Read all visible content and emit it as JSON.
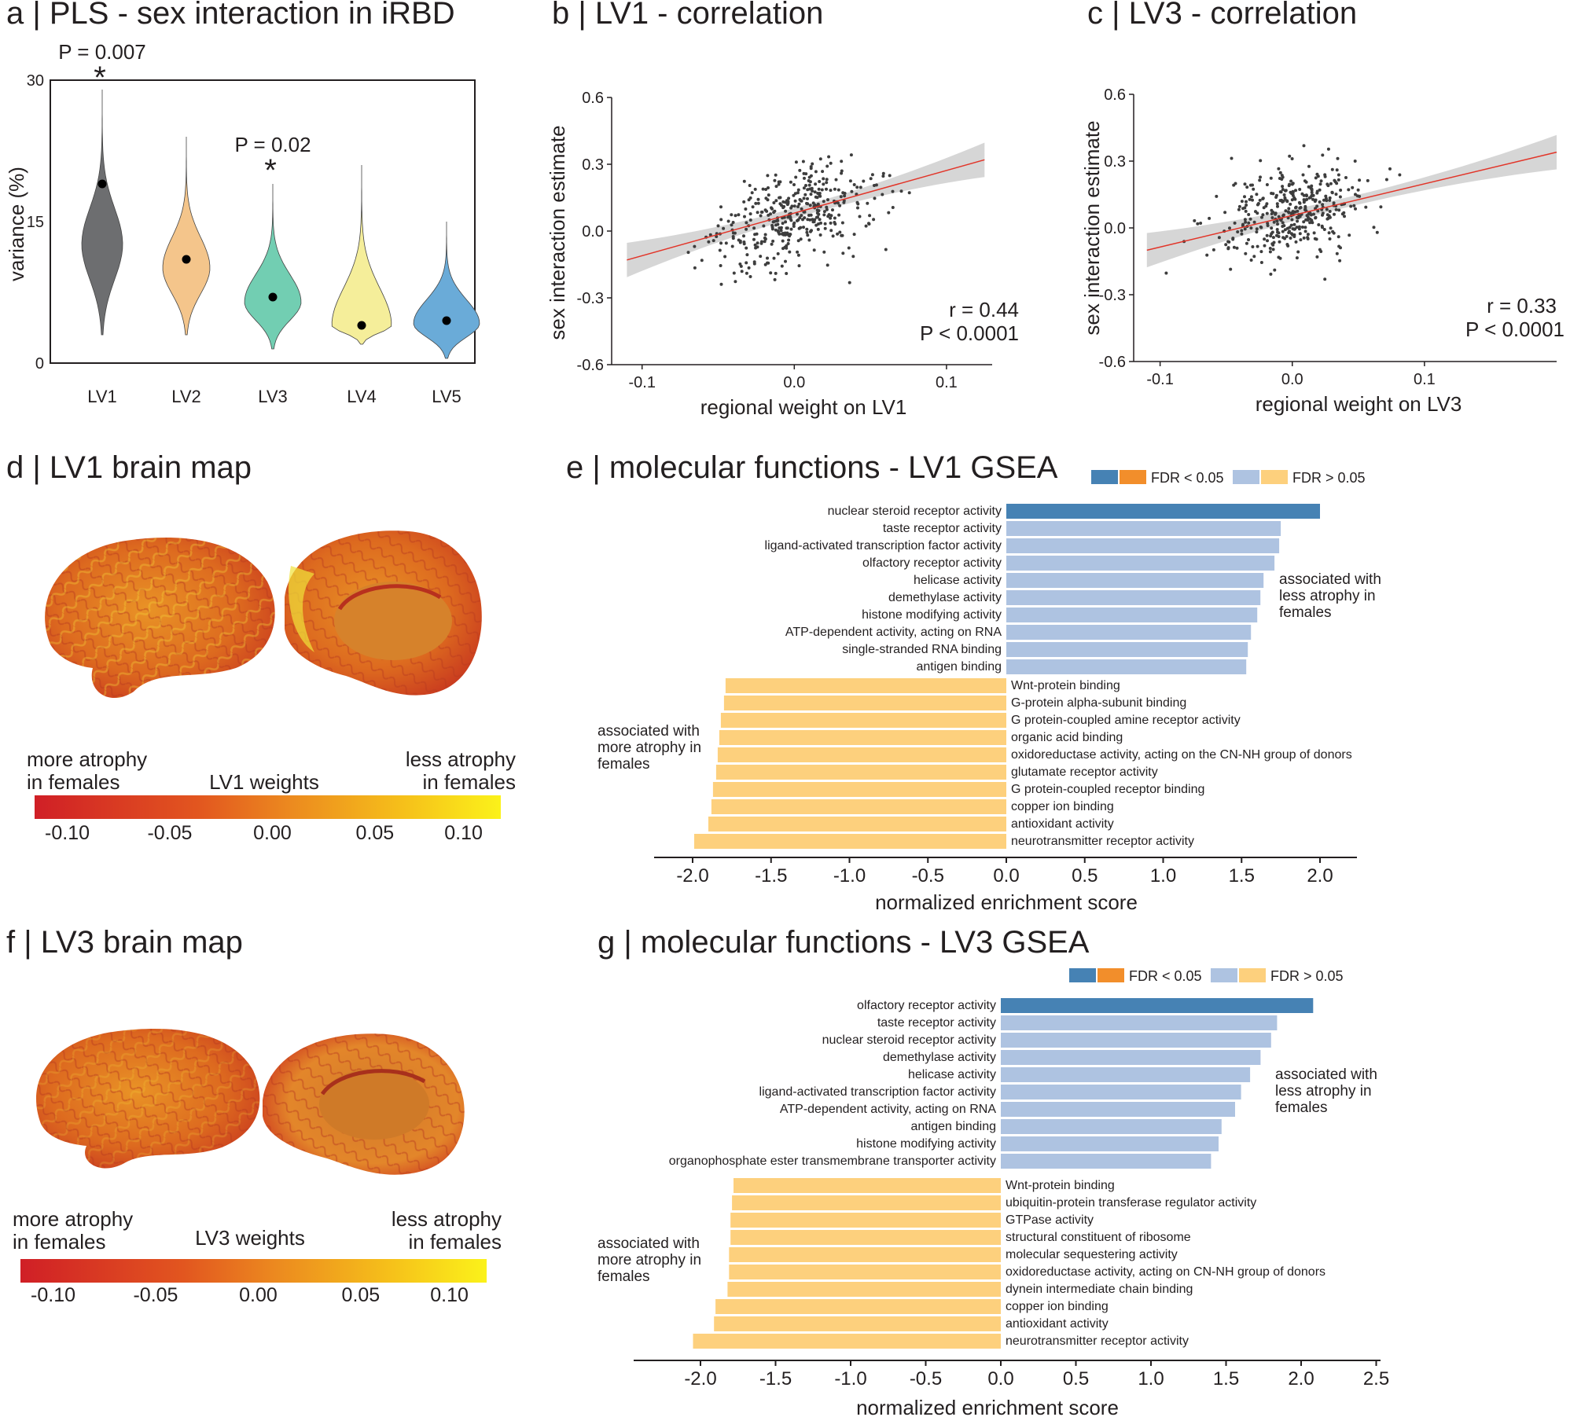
{
  "colors": {
    "lv1": "#6d6e70",
    "lv2": "#f4c58b",
    "lv3": "#72ceb2",
    "lv4": "#f5ee9a",
    "lv5": "#6aabd8",
    "sig_pos": "#4682b4",
    "sig_neg": "#f28e2b",
    "ns_pos": "#aec3e1",
    "ns_neg": "#fdd07d",
    "fit_line": "#e23428",
    "band": "#cfcfcf",
    "points": "#3d3d3d"
  },
  "panel_a": {
    "title": "a | PLS - sex interaction in iRBD",
    "chart_data": {
      "type": "violin",
      "ylabel": "variance (%)",
      "ylim": [
        0,
        30
      ],
      "yticks": [
        "0",
        "15",
        "30"
      ],
      "categories": [
        "LV1",
        "LV2",
        "LV3",
        "LV4",
        "LV5"
      ],
      "observed": [
        19,
        11,
        7,
        4,
        4.5
      ],
      "dist_min": [
        3,
        3,
        1.5,
        2,
        0.5
      ],
      "dist_max": [
        29,
        24,
        19,
        21,
        15
      ],
      "annotations": [
        {
          "category": "LV1",
          "p": "P = 0.007",
          "star": "*"
        },
        {
          "category": "LV3",
          "p": "P = 0.02",
          "star": "*"
        }
      ]
    }
  },
  "panel_b": {
    "title": "b | LV1 - correlation",
    "chart_data": {
      "type": "scatter",
      "xlabel": "regional weight on LV1",
      "ylabel": "sex interaction estimate",
      "xlim": [
        -0.12,
        0.13
      ],
      "ylim": [
        -0.6,
        0.6
      ],
      "xticks": [
        -0.1,
        0.0,
        0.1
      ],
      "yticks": [
        -0.6,
        -0.3,
        0.0,
        0.3,
        0.6
      ],
      "xtick_labels": [
        "-0.1",
        "0.0",
        "0.1"
      ],
      "ytick_labels": [
        "-0.6",
        "-0.3",
        "0.0",
        "0.3",
        "0.6"
      ],
      "fit": {
        "x": [
          -0.11,
          0.125
        ],
        "y": [
          -0.13,
          0.32
        ]
      },
      "r_text": "r = 0.44",
      "p_text": "P < 0.0001",
      "n_points": 400,
      "seed": 7,
      "slope": 1.9,
      "spread": 0.17
    }
  },
  "panel_c": {
    "title": "c | LV3 - correlation",
    "chart_data": {
      "type": "scatter",
      "xlabel": "regional weight on LV3",
      "ylabel": "sex interaction estimate",
      "xlim": [
        -0.12,
        0.2
      ],
      "ylim": [
        -0.6,
        0.6
      ],
      "xticks": [
        -0.1,
        0.0,
        0.1
      ],
      "yticks": [
        -0.6,
        -0.3,
        0.0,
        0.3,
        0.6
      ],
      "xtick_labels": [
        "-0.1",
        "0.0",
        "0.1"
      ],
      "ytick_labels": [
        "-0.6",
        "-0.3",
        "0.0",
        "0.3",
        "0.6"
      ],
      "fit": {
        "x": [
          -0.11,
          0.2
        ],
        "y": [
          -0.1,
          0.34
        ]
      },
      "r_text": "r = 0.33",
      "p_text": "P < 0.0001",
      "n_points": 400,
      "seed": 13,
      "slope": 1.4,
      "spread": 0.18
    }
  },
  "panel_d": {
    "title": "d | LV1 brain map",
    "left_label": [
      "more atrophy",
      "in females"
    ],
    "right_label": [
      "less atrophy",
      "in females"
    ],
    "colorbar_title": "LV1 weights",
    "colorbar_ticks": [
      "-0.10",
      "-0.05",
      "0.00",
      "0.05",
      "0.10"
    ]
  },
  "panel_f": {
    "title": "f | LV3 brain map",
    "left_label": [
      "more atrophy",
      "in females"
    ],
    "right_label": [
      "less atrophy",
      "in females"
    ],
    "colorbar_title": "LV3 weights",
    "colorbar_ticks": [
      "-0.10",
      "-0.05",
      "0.00",
      "0.05",
      "0.10"
    ]
  },
  "panel_e": {
    "title": "e | molecular functions - LV1 GSEA",
    "legend": {
      "sig": "FDR < 0.05",
      "ns": "FDR > 0.05"
    },
    "pos_annotation": [
      "associated with",
      "less atrophy in",
      "females"
    ],
    "neg_annotation": [
      "associated with",
      "more atrophy in",
      "females"
    ],
    "chart_data": {
      "type": "bar",
      "orientation": "horizontal",
      "xlabel": "normalized enrichment score",
      "xlim": [
        -2.2,
        2.2
      ],
      "xticks": [
        -2.0,
        -1.5,
        -1.0,
        -0.5,
        0.0,
        0.5,
        1.0,
        1.5,
        2.0
      ],
      "xtick_labels": [
        "-2.0",
        "-1.5",
        "-1.0",
        "-0.5",
        "0.0",
        "0.5",
        "1.0",
        "1.5",
        "2.0"
      ],
      "positive": [
        {
          "term": "nuclear steroid receptor activity",
          "nes": 2.0,
          "fdr_sig": true
        },
        {
          "term": "taste receptor activity",
          "nes": 1.75,
          "fdr_sig": false
        },
        {
          "term": "ligand-activated transcription factor activity",
          "nes": 1.74,
          "fdr_sig": false
        },
        {
          "term": "olfactory receptor activity",
          "nes": 1.71,
          "fdr_sig": false
        },
        {
          "term": "helicase activity",
          "nes": 1.64,
          "fdr_sig": false
        },
        {
          "term": "demethylase activity",
          "nes": 1.62,
          "fdr_sig": false
        },
        {
          "term": "histone modifying activity",
          "nes": 1.6,
          "fdr_sig": false
        },
        {
          "term": "ATP-dependent activity, acting on RNA",
          "nes": 1.56,
          "fdr_sig": false
        },
        {
          "term": "single-stranded RNA binding",
          "nes": 1.54,
          "fdr_sig": false
        },
        {
          "term": "antigen binding",
          "nes": 1.53,
          "fdr_sig": false
        }
      ],
      "negative": [
        {
          "term": "Wnt-protein binding",
          "nes": -1.79,
          "fdr_sig": false
        },
        {
          "term": "G-protein alpha-subunit binding",
          "nes": -1.8,
          "fdr_sig": false
        },
        {
          "term": "G protein-coupled amine receptor activity",
          "nes": -1.82,
          "fdr_sig": false
        },
        {
          "term": "organic acid binding",
          "nes": -1.83,
          "fdr_sig": false
        },
        {
          "term": "oxidoreductase activity, acting on the CN-NH group of donors",
          "nes": -1.84,
          "fdr_sig": false
        },
        {
          "term": "glutamate receptor activity",
          "nes": -1.85,
          "fdr_sig": false
        },
        {
          "term": "G protein-coupled receptor binding",
          "nes": -1.87,
          "fdr_sig": false
        },
        {
          "term": "copper ion binding",
          "nes": -1.88,
          "fdr_sig": false
        },
        {
          "term": "antioxidant activity",
          "nes": -1.9,
          "fdr_sig": false
        },
        {
          "term": "neurotransmitter receptor activity",
          "nes": -1.99,
          "fdr_sig": false
        }
      ]
    }
  },
  "panel_g": {
    "title": "g | molecular functions - LV3 GSEA",
    "legend": {
      "sig": "FDR < 0.05",
      "ns": "FDR > 0.05"
    },
    "pos_annotation": [
      "associated with",
      "less atrophy in",
      "females"
    ],
    "neg_annotation": [
      "associated with",
      "more atrophy in",
      "females"
    ],
    "chart_data": {
      "type": "bar",
      "orientation": "horizontal",
      "xlabel": "normalized enrichment score",
      "xlim": [
        -2.2,
        2.5
      ],
      "xticks": [
        -2.0,
        -1.5,
        -1.0,
        -0.5,
        0.0,
        0.5,
        1.0,
        1.5,
        2.0,
        2.5
      ],
      "xtick_labels": [
        "-2.0",
        "-1.5",
        "-1.0",
        "-0.5",
        "0.0",
        "0.5",
        "1.0",
        "1.5",
        "2.0",
        "2.5"
      ],
      "positive": [
        {
          "term": "olfactory receptor activity",
          "nes": 2.08,
          "fdr_sig": true
        },
        {
          "term": "taste receptor activity",
          "nes": 1.84,
          "fdr_sig": false
        },
        {
          "term": "nuclear steroid receptor activity",
          "nes": 1.8,
          "fdr_sig": false
        },
        {
          "term": "demethylase activity",
          "nes": 1.73,
          "fdr_sig": false
        },
        {
          "term": "helicase activity",
          "nes": 1.66,
          "fdr_sig": false
        },
        {
          "term": "ligand-activated transcription factor activity",
          "nes": 1.6,
          "fdr_sig": false
        },
        {
          "term": "ATP-dependent activity, acting on RNA",
          "nes": 1.56,
          "fdr_sig": false
        },
        {
          "term": "antigen binding",
          "nes": 1.47,
          "fdr_sig": false
        },
        {
          "term": "histone modifying activity",
          "nes": 1.45,
          "fdr_sig": false
        },
        {
          "term": "organophosphate ester transmembrane transporter activity",
          "nes": 1.4,
          "fdr_sig": false
        }
      ],
      "negative": [
        {
          "term": "Wnt-protein binding",
          "nes": -1.78,
          "fdr_sig": false
        },
        {
          "term": "ubiquitin-protein transferase regulator activity",
          "nes": -1.79,
          "fdr_sig": false
        },
        {
          "term": "GTPase activity",
          "nes": -1.8,
          "fdr_sig": false
        },
        {
          "term": "structural constituent of ribosome",
          "nes": -1.8,
          "fdr_sig": false
        },
        {
          "term": "molecular sequestering activity",
          "nes": -1.81,
          "fdr_sig": false
        },
        {
          "term": "oxidoreductase activity, acting on CN-NH group of donors",
          "nes": -1.81,
          "fdr_sig": false
        },
        {
          "term": "dynein intermediate chain binding",
          "nes": -1.82,
          "fdr_sig": false
        },
        {
          "term": "copper ion binding",
          "nes": -1.9,
          "fdr_sig": false
        },
        {
          "term": "antioxidant activity",
          "nes": -1.91,
          "fdr_sig": false
        },
        {
          "term": "neurotransmitter receptor activity",
          "nes": -2.05,
          "fdr_sig": false
        }
      ]
    }
  }
}
